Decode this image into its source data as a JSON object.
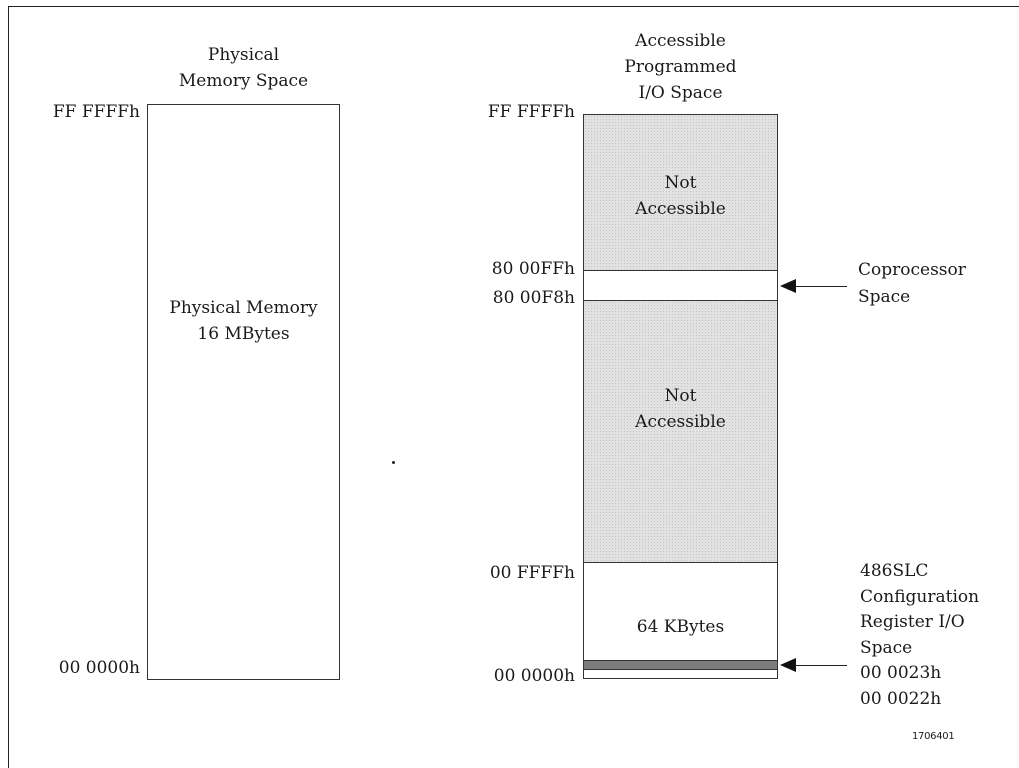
{
  "physical": {
    "title_line1": "Physical",
    "title_line2": "Memory Space",
    "top_address": "FF FFFFh",
    "bottom_address": "00 0000h",
    "body_line1": "Physical Memory",
    "body_line2": "16 MBytes"
  },
  "io": {
    "title_line1": "Accessible",
    "title_line2": "Programmed",
    "title_line3": "I/O Space",
    "top_address": "FF FFFFh",
    "coproc_top_address": "80 00FFh",
    "coproc_bottom_address": "80 00F8h",
    "low_top_address": "00 FFFFh",
    "bottom_address": "00 0000h",
    "upper_region_line1": "Not",
    "upper_region_line2": "Accessible",
    "middle_region_line1": "Not",
    "middle_region_line2": "Accessible",
    "low_region_label": "64 KBytes"
  },
  "annotations": {
    "coproc_line1": "Coprocessor",
    "coproc_line2": "Space",
    "config_line1": "486SLC",
    "config_line2": "Configuration",
    "config_line3": "Register I/O",
    "config_line4": "Space",
    "config_line5": "00 0023h",
    "config_line6": "00 0022h"
  },
  "figure_number": "1706401"
}
